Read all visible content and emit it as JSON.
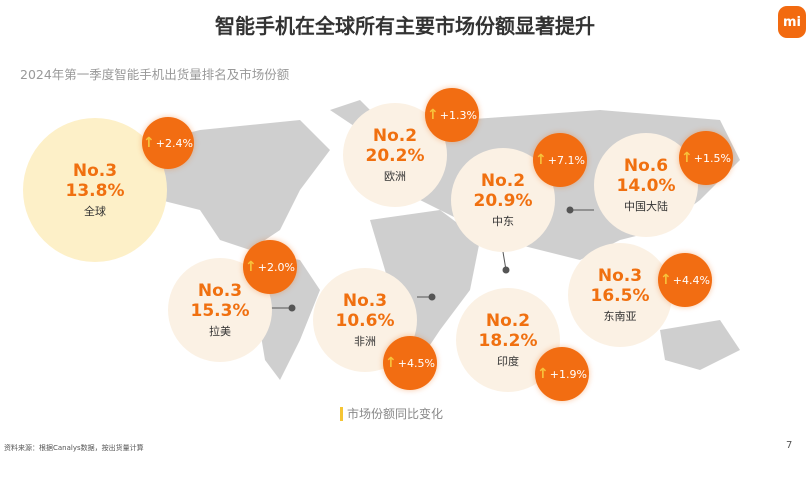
{
  "title": "智能手机在全球所有主要市场份额显著提升",
  "logo": "mi",
  "subtitle": "2024年第一季度智能手机出货量排名及市场份额",
  "colors": {
    "accent": "#f26d12",
    "circle": "#fbf1e4",
    "global_circle": "#fdf0c8",
    "arrow": "#f5c534",
    "map": "#cfcfcf"
  },
  "markets": [
    {
      "rank": "No.3",
      "share": "13.8%",
      "name": "全球",
      "change": "+2.4%"
    },
    {
      "rank": "No.2",
      "share": "20.2%",
      "name": "欧洲",
      "change": "+1.3%"
    },
    {
      "rank": "No.2",
      "share": "20.9%",
      "name": "中东",
      "change": "+7.1%"
    },
    {
      "rank": "No.6",
      "share": "14.0%",
      "name": "中国大陆",
      "change": "+1.5%"
    },
    {
      "rank": "No.3",
      "share": "15.3%",
      "name": "拉美",
      "change": "+2.0%"
    },
    {
      "rank": "No.3",
      "share": "10.6%",
      "name": "非洲",
      "change": "+4.5%"
    },
    {
      "rank": "No.2",
      "share": "18.2%",
      "name": "印度",
      "change": "+1.9%"
    },
    {
      "rank": "No.3",
      "share": "16.5%",
      "name": "东南亚",
      "change": "+4.4%"
    }
  ],
  "legend": "市场份额同比变化",
  "source": "资料来源：根据Canalys数据，按出货量计算",
  "page_number": "7"
}
